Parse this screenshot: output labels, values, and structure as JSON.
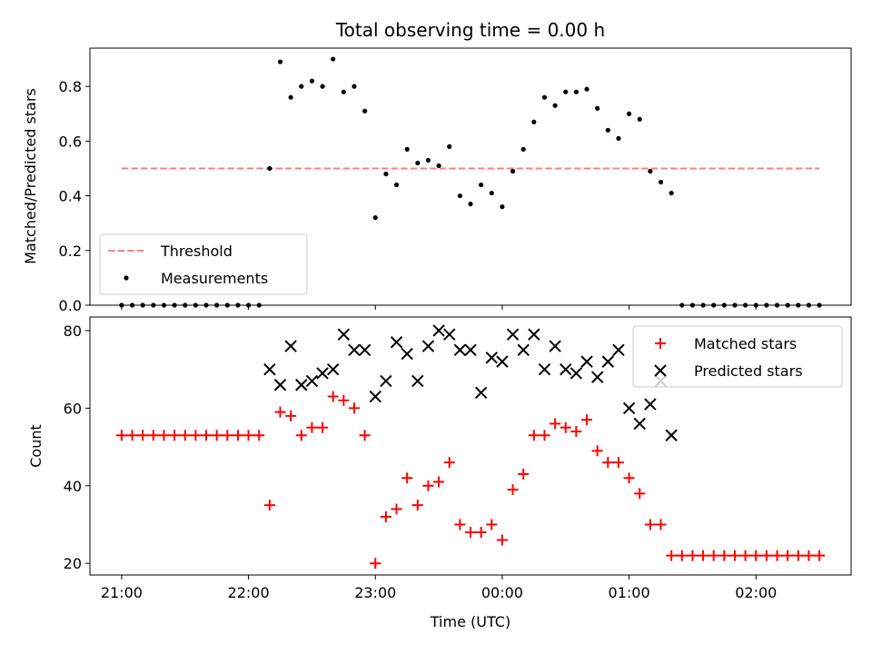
{
  "title": "Total observing time = 0.00 h",
  "chart_data": [
    {
      "type": "scatter",
      "name": "ratio-panel",
      "ylabel": "Matched/Predicted stars",
      "ylim": [
        0,
        0.94
      ],
      "yticks": [
        0.0,
        0.2,
        0.4,
        0.6,
        0.8
      ],
      "ytick_labels": [
        "0.0",
        "0.2",
        "0.4",
        "0.6",
        "0.8"
      ],
      "threshold": {
        "name": "Threshold",
        "value": 0.5,
        "x_range": [
          0,
          330
        ],
        "color": "#ff7f7f",
        "style": "dashed"
      },
      "legend": {
        "placement": "lower-left",
        "entries": [
          "Threshold",
          "Measurements"
        ]
      },
      "series": [
        {
          "name": "Measurements",
          "marker": "dot",
          "color": "#000000",
          "points": [
            [
              0,
              0
            ],
            [
              5,
              0
            ],
            [
              10,
              0
            ],
            [
              15,
              0
            ],
            [
              20,
              0
            ],
            [
              25,
              0
            ],
            [
              30,
              0
            ],
            [
              35,
              0
            ],
            [
              40,
              0
            ],
            [
              45,
              0
            ],
            [
              50,
              0
            ],
            [
              55,
              0
            ],
            [
              60,
              0
            ],
            [
              65,
              0
            ],
            [
              70,
              0.5
            ],
            [
              75,
              0.89
            ],
            [
              80,
              0.76
            ],
            [
              85,
              0.8
            ],
            [
              90,
              0.82
            ],
            [
              95,
              0.8
            ],
            [
              100,
              0.9
            ],
            [
              105,
              0.78
            ],
            [
              110,
              0.8
            ],
            [
              115,
              0.71
            ],
            [
              120,
              0.32
            ],
            [
              125,
              0.48
            ],
            [
              130,
              0.44
            ],
            [
              135,
              0.57
            ],
            [
              140,
              0.52
            ],
            [
              145,
              0.53
            ],
            [
              150,
              0.51
            ],
            [
              155,
              0.58
            ],
            [
              160,
              0.4
            ],
            [
              165,
              0.37
            ],
            [
              170,
              0.44
            ],
            [
              175,
              0.41
            ],
            [
              180,
              0.36
            ],
            [
              185,
              0.49
            ],
            [
              190,
              0.57
            ],
            [
              195,
              0.67
            ],
            [
              200,
              0.76
            ],
            [
              205,
              0.73
            ],
            [
              210,
              0.78
            ],
            [
              215,
              0.78
            ],
            [
              220,
              0.79
            ],
            [
              225,
              0.72
            ],
            [
              230,
              0.64
            ],
            [
              235,
              0.61
            ],
            [
              240,
              0.7
            ],
            [
              245,
              0.68
            ],
            [
              250,
              0.49
            ],
            [
              255,
              0.45
            ],
            [
              260,
              0.41
            ],
            [
              265,
              0
            ],
            [
              270,
              0
            ],
            [
              275,
              0
            ],
            [
              280,
              0
            ],
            [
              285,
              0
            ],
            [
              290,
              0
            ],
            [
              295,
              0
            ],
            [
              300,
              0
            ],
            [
              305,
              0
            ],
            [
              310,
              0
            ],
            [
              315,
              0
            ],
            [
              320,
              0
            ],
            [
              325,
              0
            ],
            [
              330,
              0
            ]
          ]
        }
      ]
    },
    {
      "type": "scatter",
      "name": "count-panel",
      "ylabel": "Count",
      "xlabel": "Time (UTC)",
      "xlim": [
        -15,
        345
      ],
      "ylim": [
        17,
        83.5
      ],
      "yticks": [
        20,
        40,
        60,
        80
      ],
      "ytick_labels": [
        "20",
        "40",
        "60",
        "80"
      ],
      "x_ticks_minutes": [
        0,
        60,
        120,
        180,
        240,
        300
      ],
      "x_tick_labels": [
        "21:00",
        "22:00",
        "23:00",
        "00:00",
        "01:00",
        "02:00"
      ],
      "legend": {
        "placement": "upper-right",
        "entries": [
          "Matched stars",
          "Predicted stars"
        ]
      },
      "series": [
        {
          "name": "Matched stars",
          "marker": "plus",
          "color": "#ff0000",
          "points": [
            [
              0,
              53
            ],
            [
              5,
              53
            ],
            [
              10,
              53
            ],
            [
              15,
              53
            ],
            [
              20,
              53
            ],
            [
              25,
              53
            ],
            [
              30,
              53
            ],
            [
              35,
              53
            ],
            [
              40,
              53
            ],
            [
              45,
              53
            ],
            [
              50,
              53
            ],
            [
              55,
              53
            ],
            [
              60,
              53
            ],
            [
              65,
              53
            ],
            [
              70,
              35
            ],
            [
              75,
              59
            ],
            [
              80,
              58
            ],
            [
              85,
              53
            ],
            [
              90,
              55
            ],
            [
              95,
              55
            ],
            [
              100,
              63
            ],
            [
              105,
              62
            ],
            [
              110,
              60
            ],
            [
              115,
              53
            ],
            [
              120,
              20
            ],
            [
              125,
              32
            ],
            [
              130,
              34
            ],
            [
              135,
              42
            ],
            [
              140,
              35
            ],
            [
              145,
              40
            ],
            [
              150,
              41
            ],
            [
              155,
              46
            ],
            [
              160,
              30
            ],
            [
              165,
              28
            ],
            [
              170,
              28
            ],
            [
              175,
              30
            ],
            [
              180,
              26
            ],
            [
              185,
              39
            ],
            [
              190,
              43
            ],
            [
              195,
              53
            ],
            [
              200,
              53
            ],
            [
              205,
              56
            ],
            [
              210,
              55
            ],
            [
              215,
              54
            ],
            [
              220,
              57
            ],
            [
              225,
              49
            ],
            [
              230,
              46
            ],
            [
              235,
              46
            ],
            [
              240,
              42
            ],
            [
              245,
              38
            ],
            [
              250,
              30
            ],
            [
              255,
              30
            ],
            [
              260,
              22
            ],
            [
              265,
              22
            ],
            [
              270,
              22
            ],
            [
              275,
              22
            ],
            [
              280,
              22
            ],
            [
              285,
              22
            ],
            [
              290,
              22
            ],
            [
              295,
              22
            ],
            [
              300,
              22
            ],
            [
              305,
              22
            ],
            [
              310,
              22
            ],
            [
              315,
              22
            ],
            [
              320,
              22
            ],
            [
              325,
              22
            ],
            [
              330,
              22
            ]
          ]
        },
        {
          "name": "Predicted stars",
          "marker": "x",
          "color": "#000000",
          "points": [
            [
              70,
              70
            ],
            [
              75,
              66
            ],
            [
              80,
              76
            ],
            [
              85,
              66
            ],
            [
              90,
              67
            ],
            [
              95,
              69
            ],
            [
              100,
              70
            ],
            [
              105,
              79
            ],
            [
              110,
              75
            ],
            [
              115,
              75
            ],
            [
              120,
              63
            ],
            [
              125,
              67
            ],
            [
              130,
              77
            ],
            [
              135,
              74
            ],
            [
              140,
              67
            ],
            [
              145,
              76
            ],
            [
              150,
              80
            ],
            [
              155,
              79
            ],
            [
              160,
              75
            ],
            [
              165,
              75
            ],
            [
              170,
              64
            ],
            [
              175,
              73
            ],
            [
              180,
              72
            ],
            [
              185,
              79
            ],
            [
              190,
              75
            ],
            [
              195,
              79
            ],
            [
              200,
              70
            ],
            [
              205,
              76
            ],
            [
              210,
              70
            ],
            [
              215,
              69
            ],
            [
              220,
              72
            ],
            [
              225,
              68
            ],
            [
              230,
              72
            ],
            [
              235,
              75
            ],
            [
              240,
              60
            ],
            [
              245,
              56
            ],
            [
              250,
              61
            ],
            [
              255,
              67
            ],
            [
              260,
              53
            ]
          ]
        }
      ]
    }
  ]
}
